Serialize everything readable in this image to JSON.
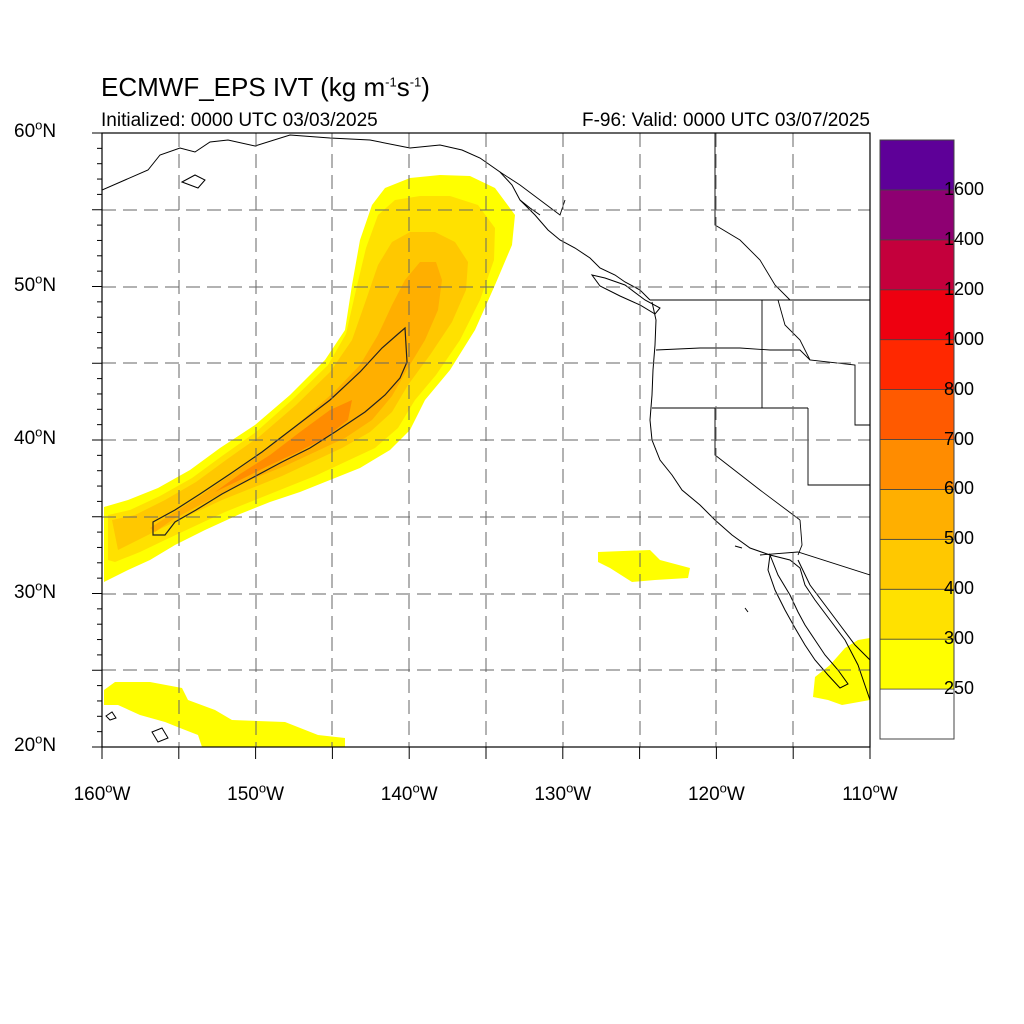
{
  "title": {
    "model": "ECMWF_EPS IVT",
    "units_open": "(kg m",
    "exp1": "-1",
    "units_mid": "s",
    "exp2": "-1",
    "units_close": ")"
  },
  "subtitle_left": "Initialized: 0000 UTC 03/03/2025",
  "subtitle_right": "F-96: Valid: 0000 UTC 03/07/2025",
  "map": {
    "extent": {
      "lon_min": -160,
      "lon_max": -110,
      "lat_min": 20,
      "lat_max": 60
    },
    "gridlines": "dashed every 5 degrees",
    "lat_labels": [
      {
        "lat": 60,
        "deg": "60",
        "hemi": "N"
      },
      {
        "lat": 50,
        "deg": "50",
        "hemi": "N"
      },
      {
        "lat": 40,
        "deg": "40",
        "hemi": "N"
      },
      {
        "lat": 30,
        "deg": "30",
        "hemi": "N"
      },
      {
        "lat": 20,
        "deg": "20",
        "hemi": "N"
      }
    ],
    "lon_labels": [
      {
        "lon": -160,
        "deg": "160",
        "hemi": "W"
      },
      {
        "lon": -150,
        "deg": "150",
        "hemi": "W"
      },
      {
        "lon": -140,
        "deg": "140",
        "hemi": "W"
      },
      {
        "lon": -130,
        "deg": "130",
        "hemi": "W"
      },
      {
        "lon": -120,
        "deg": "120",
        "hemi": "W"
      },
      {
        "lon": -110,
        "deg": "110",
        "hemi": "W"
      }
    ]
  },
  "colorbar": {
    "levels": [
      "250",
      "300",
      "400",
      "500",
      "600",
      "700",
      "800",
      "1000",
      "1200",
      "1400",
      "1600"
    ],
    "colors": [
      "#ffffff",
      "#ffff00",
      "#ffe100",
      "#ffc800",
      "#ffaf00",
      "#ff8c00",
      "#ff5a00",
      "#ff2800",
      "#ee0010",
      "#c4003c",
      "#8e0072",
      "#5e0098"
    ]
  },
  "fields": {
    "river": {
      "band_colors": [
        "#ffff00",
        "#ffe100",
        "#ffc800",
        "#ffaf00",
        "#ff8c00"
      ],
      "outline_level": "600"
    },
    "blob_offshore_ca": "#ffff00",
    "blob_baja": "#ffff00",
    "blob_hawaii": "#ffff00"
  }
}
